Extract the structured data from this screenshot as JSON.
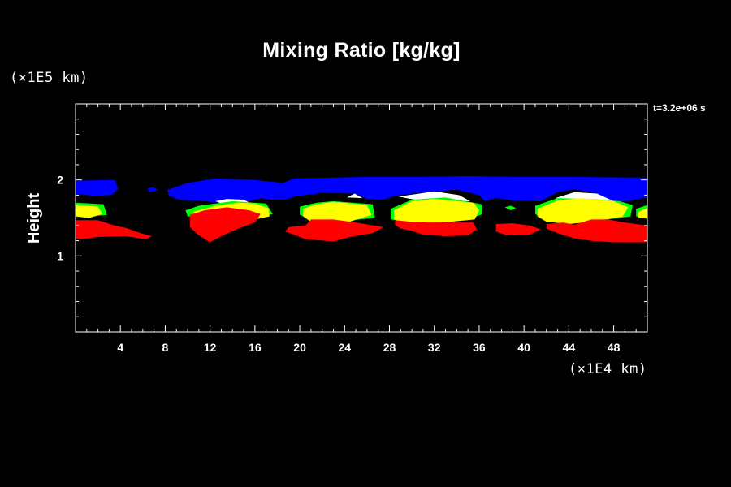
{
  "chart_data": {
    "type": "heatmap",
    "title": "Mixing Ratio [kg/kg]",
    "xlabel": "",
    "ylabel": "Height",
    "x_unit_label": "(×1E4 km)",
    "y_unit_label": "(×1E5 km)",
    "time_label": "t=3.2e+06 s",
    "xlim": [
      0,
      51
    ],
    "ylim": [
      0,
      3
    ],
    "x_ticks": [
      4,
      8,
      12,
      16,
      20,
      24,
      28,
      32,
      36,
      40,
      44,
      48
    ],
    "x_tick_labels": [
      "4",
      "8",
      "12",
      "16",
      "20",
      "24",
      "28",
      "32",
      "36",
      "40",
      "44",
      "48"
    ],
    "y_ticks": [
      1,
      2
    ],
    "y_tick_labels": [
      "1",
      "2"
    ],
    "background": "#000000",
    "levels": [
      {
        "level": "low",
        "color": "#ff0000"
      },
      {
        "level": "medium-low",
        "color": "#00ff00"
      },
      {
        "level": "medium",
        "color": "#ffff00"
      },
      {
        "level": "high",
        "color": "#ffffff"
      },
      {
        "level": "band",
        "color": "#0000ff"
      }
    ],
    "regions": [
      {
        "color": "#0000ff",
        "name": "blue-band-1",
        "points": [
          [
            0,
            1.99
          ],
          [
            3.5,
            2.0
          ],
          [
            3.8,
            1.88
          ],
          [
            3.2,
            1.8
          ],
          [
            1.5,
            1.79
          ],
          [
            0,
            1.82
          ]
        ]
      },
      {
        "color": "#0000ff",
        "name": "blue-band-2",
        "points": [
          [
            6.4,
            1.89
          ],
          [
            6.9,
            1.9
          ],
          [
            7.4,
            1.87
          ],
          [
            6.6,
            1.84
          ]
        ]
      },
      {
        "color": "#0000ff",
        "name": "blue-band-3",
        "points": [
          [
            8.2,
            1.87
          ],
          [
            10,
            1.96
          ],
          [
            12.5,
            2.02
          ],
          [
            16,
            2.0
          ],
          [
            18.5,
            1.96
          ],
          [
            19.5,
            2.02
          ],
          [
            26,
            2.04
          ],
          [
            31,
            2.04
          ],
          [
            35,
            2.05
          ],
          [
            39,
            2.04
          ],
          [
            44,
            2.04
          ],
          [
            51,
            2.03
          ],
          [
            51,
            1.77
          ],
          [
            49.5,
            1.73
          ],
          [
            48,
            1.7
          ],
          [
            46.5,
            1.82
          ],
          [
            44.5,
            1.88
          ],
          [
            43,
            1.84
          ],
          [
            41.5,
            1.72
          ],
          [
            39,
            1.73
          ],
          [
            37.5,
            1.76
          ],
          [
            36.5,
            1.72
          ],
          [
            36,
            1.8
          ],
          [
            34,
            1.87
          ],
          [
            31,
            1.84
          ],
          [
            28.5,
            1.79
          ],
          [
            27.5,
            1.74
          ],
          [
            26,
            1.75
          ],
          [
            25,
            1.82
          ],
          [
            22,
            1.83
          ],
          [
            19.5,
            1.78
          ],
          [
            18.8,
            1.74
          ],
          [
            17.5,
            1.74
          ],
          [
            16.5,
            1.76
          ],
          [
            15.5,
            1.72
          ],
          [
            13.5,
            1.69
          ],
          [
            11.5,
            1.72
          ],
          [
            10.5,
            1.73
          ],
          [
            9.2,
            1.74
          ],
          [
            8.3,
            1.79
          ]
        ]
      },
      {
        "color": "#ffffff",
        "name": "white-top-1",
        "points": [
          [
            28.8,
            1.78
          ],
          [
            32,
            1.85
          ],
          [
            34.2,
            1.8
          ],
          [
            35.2,
            1.72
          ],
          [
            31,
            1.72
          ]
        ]
      },
      {
        "color": "#ffffff",
        "name": "white-top-2",
        "points": [
          [
            42.8,
            1.76
          ],
          [
            44.5,
            1.84
          ],
          [
            46.5,
            1.82
          ],
          [
            48,
            1.72
          ],
          [
            44,
            1.7
          ]
        ]
      },
      {
        "color": "#ffffff",
        "name": "white-top-3",
        "points": [
          [
            24.2,
            1.77
          ],
          [
            24.9,
            1.82
          ],
          [
            25.6,
            1.76
          ]
        ]
      },
      {
        "color": "#ffffff",
        "name": "white-top-4",
        "points": [
          [
            12.5,
            1.72
          ],
          [
            13.5,
            1.75
          ],
          [
            15,
            1.74
          ],
          [
            15.5,
            1.7
          ],
          [
            13,
            1.69
          ]
        ]
      },
      {
        "color": "#00ff00",
        "name": "green-1",
        "points": [
          [
            0,
            1.7
          ],
          [
            2.5,
            1.68
          ],
          [
            2.8,
            1.54
          ],
          [
            1,
            1.52
          ],
          [
            0,
            1.54
          ]
        ]
      },
      {
        "color": "#00ff00",
        "name": "green-2",
        "points": [
          [
            9.8,
            1.6
          ],
          [
            11,
            1.66
          ],
          [
            12.5,
            1.69
          ],
          [
            14,
            1.72
          ],
          [
            17,
            1.69
          ],
          [
            17.6,
            1.55
          ],
          [
            15,
            1.48
          ],
          [
            12,
            1.5
          ],
          [
            10,
            1.52
          ]
        ]
      },
      {
        "color": "#00ff00",
        "name": "green-3",
        "points": [
          [
            20,
            1.65
          ],
          [
            21.5,
            1.7
          ],
          [
            23,
            1.72
          ],
          [
            26.5,
            1.68
          ],
          [
            26.7,
            1.5
          ],
          [
            24,
            1.46
          ],
          [
            21,
            1.48
          ],
          [
            20,
            1.54
          ]
        ]
      },
      {
        "color": "#00ff00",
        "name": "green-4",
        "points": [
          [
            28.1,
            1.62
          ],
          [
            30,
            1.74
          ],
          [
            33,
            1.77
          ],
          [
            36.2,
            1.68
          ],
          [
            36.3,
            1.55
          ],
          [
            35,
            1.47
          ],
          [
            30,
            1.45
          ],
          [
            28.1,
            1.48
          ]
        ]
      },
      {
        "color": "#00ff00",
        "name": "green-5",
        "points": [
          [
            38.3,
            1.64
          ],
          [
            38.8,
            1.66
          ],
          [
            39.3,
            1.63
          ],
          [
            38.8,
            1.6
          ]
        ]
      },
      {
        "color": "#00ff00",
        "name": "green-6",
        "points": [
          [
            41,
            1.66
          ],
          [
            43,
            1.76
          ],
          [
            46,
            1.75
          ],
          [
            48.5,
            1.72
          ],
          [
            49.7,
            1.67
          ],
          [
            49.5,
            1.52
          ],
          [
            46,
            1.45
          ],
          [
            42,
            1.46
          ],
          [
            41,
            1.55
          ]
        ]
      },
      {
        "color": "#00ff00",
        "name": "green-7",
        "points": [
          [
            50,
            1.62
          ],
          [
            51,
            1.67
          ],
          [
            51,
            1.5
          ],
          [
            50,
            1.52
          ]
        ]
      },
      {
        "color": "#ffff00",
        "name": "yellow-1",
        "points": [
          [
            0,
            1.67
          ],
          [
            2,
            1.65
          ],
          [
            2.4,
            1.55
          ],
          [
            1.2,
            1.5
          ],
          [
            0,
            1.52
          ]
        ]
      },
      {
        "color": "#ffff00",
        "name": "yellow-2",
        "points": [
          [
            10.5,
            1.58
          ],
          [
            12.5,
            1.66
          ],
          [
            14.5,
            1.7
          ],
          [
            16,
            1.69
          ],
          [
            17.2,
            1.63
          ],
          [
            17.3,
            1.52
          ],
          [
            15,
            1.45
          ],
          [
            12,
            1.47
          ],
          [
            10.5,
            1.5
          ]
        ]
      },
      {
        "color": "#ffff00",
        "name": "yellow-3",
        "points": [
          [
            20.3,
            1.62
          ],
          [
            21.5,
            1.68
          ],
          [
            23,
            1.71
          ],
          [
            26,
            1.67
          ],
          [
            26.4,
            1.54
          ],
          [
            24,
            1.43
          ],
          [
            21,
            1.45
          ],
          [
            20.3,
            1.52
          ]
        ]
      },
      {
        "color": "#ffff00",
        "name": "yellow-4",
        "points": [
          [
            28.4,
            1.6
          ],
          [
            30,
            1.72
          ],
          [
            32,
            1.75
          ],
          [
            35.5,
            1.7
          ],
          [
            36,
            1.6
          ],
          [
            35.6,
            1.48
          ],
          [
            32,
            1.43
          ],
          [
            29.5,
            1.43
          ],
          [
            28.4,
            1.48
          ]
        ]
      },
      {
        "color": "#ffff00",
        "name": "yellow-5",
        "points": [
          [
            41.2,
            1.62
          ],
          [
            43,
            1.73
          ],
          [
            45,
            1.76
          ],
          [
            48,
            1.72
          ],
          [
            49.3,
            1.64
          ],
          [
            48.8,
            1.52
          ],
          [
            46,
            1.45
          ],
          [
            44,
            1.42
          ],
          [
            42,
            1.45
          ],
          [
            41.2,
            1.52
          ]
        ]
      },
      {
        "color": "#ffff00",
        "name": "yellow-6",
        "points": [
          [
            50.2,
            1.58
          ],
          [
            51,
            1.63
          ],
          [
            51,
            1.49
          ],
          [
            50.2,
            1.5
          ]
        ]
      },
      {
        "color": "#ff0000",
        "name": "red-1",
        "points": [
          [
            0,
            1.47
          ],
          [
            2,
            1.47
          ],
          [
            3.5,
            1.4
          ],
          [
            4.5,
            1.37
          ],
          [
            5.8,
            1.3
          ],
          [
            6.8,
            1.26
          ],
          [
            6.3,
            1.22
          ],
          [
            4.5,
            1.26
          ],
          [
            2,
            1.25
          ],
          [
            0.5,
            1.22
          ],
          [
            0,
            1.23
          ]
        ]
      },
      {
        "color": "#ff0000",
        "name": "red-2",
        "points": [
          [
            10.2,
            1.54
          ],
          [
            11.5,
            1.6
          ],
          [
            13.5,
            1.64
          ],
          [
            15.5,
            1.6
          ],
          [
            16.5,
            1.55
          ],
          [
            16,
            1.44
          ],
          [
            14.5,
            1.36
          ],
          [
            13,
            1.26
          ],
          [
            12,
            1.18
          ],
          [
            11,
            1.27
          ],
          [
            10.2,
            1.38
          ]
        ]
      },
      {
        "color": "#ff0000",
        "name": "red-3",
        "points": [
          [
            19,
            1.38
          ],
          [
            20.5,
            1.4
          ],
          [
            21,
            1.48
          ],
          [
            23,
            1.48
          ],
          [
            25,
            1.44
          ],
          [
            27.5,
            1.38
          ],
          [
            26.5,
            1.3
          ],
          [
            24.5,
            1.25
          ],
          [
            23,
            1.19
          ],
          [
            20.5,
            1.22
          ],
          [
            19.5,
            1.28
          ],
          [
            18.7,
            1.32
          ]
        ]
      },
      {
        "color": "#ff0000",
        "name": "red-4",
        "points": [
          [
            28.5,
            1.47
          ],
          [
            30,
            1.45
          ],
          [
            31.5,
            1.44
          ],
          [
            34,
            1.44
          ],
          [
            35.5,
            1.44
          ],
          [
            35.8,
            1.35
          ],
          [
            35,
            1.27
          ],
          [
            33,
            1.26
          ],
          [
            31,
            1.28
          ],
          [
            30,
            1.33
          ],
          [
            29,
            1.36
          ],
          [
            28.5,
            1.41
          ]
        ]
      },
      {
        "color": "#ff0000",
        "name": "red-5",
        "points": [
          [
            37.5,
            1.42
          ],
          [
            39,
            1.43
          ],
          [
            40.5,
            1.4
          ],
          [
            41.5,
            1.35
          ],
          [
            40.5,
            1.28
          ],
          [
            38.5,
            1.27
          ],
          [
            37.5,
            1.32
          ]
        ]
      },
      {
        "color": "#ff0000",
        "name": "red-6",
        "points": [
          [
            42,
            1.42
          ],
          [
            43.5,
            1.44
          ],
          [
            44.5,
            1.41
          ],
          [
            46,
            1.48
          ],
          [
            47.5,
            1.48
          ],
          [
            49,
            1.44
          ],
          [
            51,
            1.4
          ],
          [
            51,
            1.18
          ],
          [
            48,
            1.18
          ],
          [
            46,
            1.2
          ],
          [
            44.5,
            1.23
          ],
          [
            43,
            1.3
          ],
          [
            42,
            1.36
          ]
        ]
      }
    ]
  }
}
